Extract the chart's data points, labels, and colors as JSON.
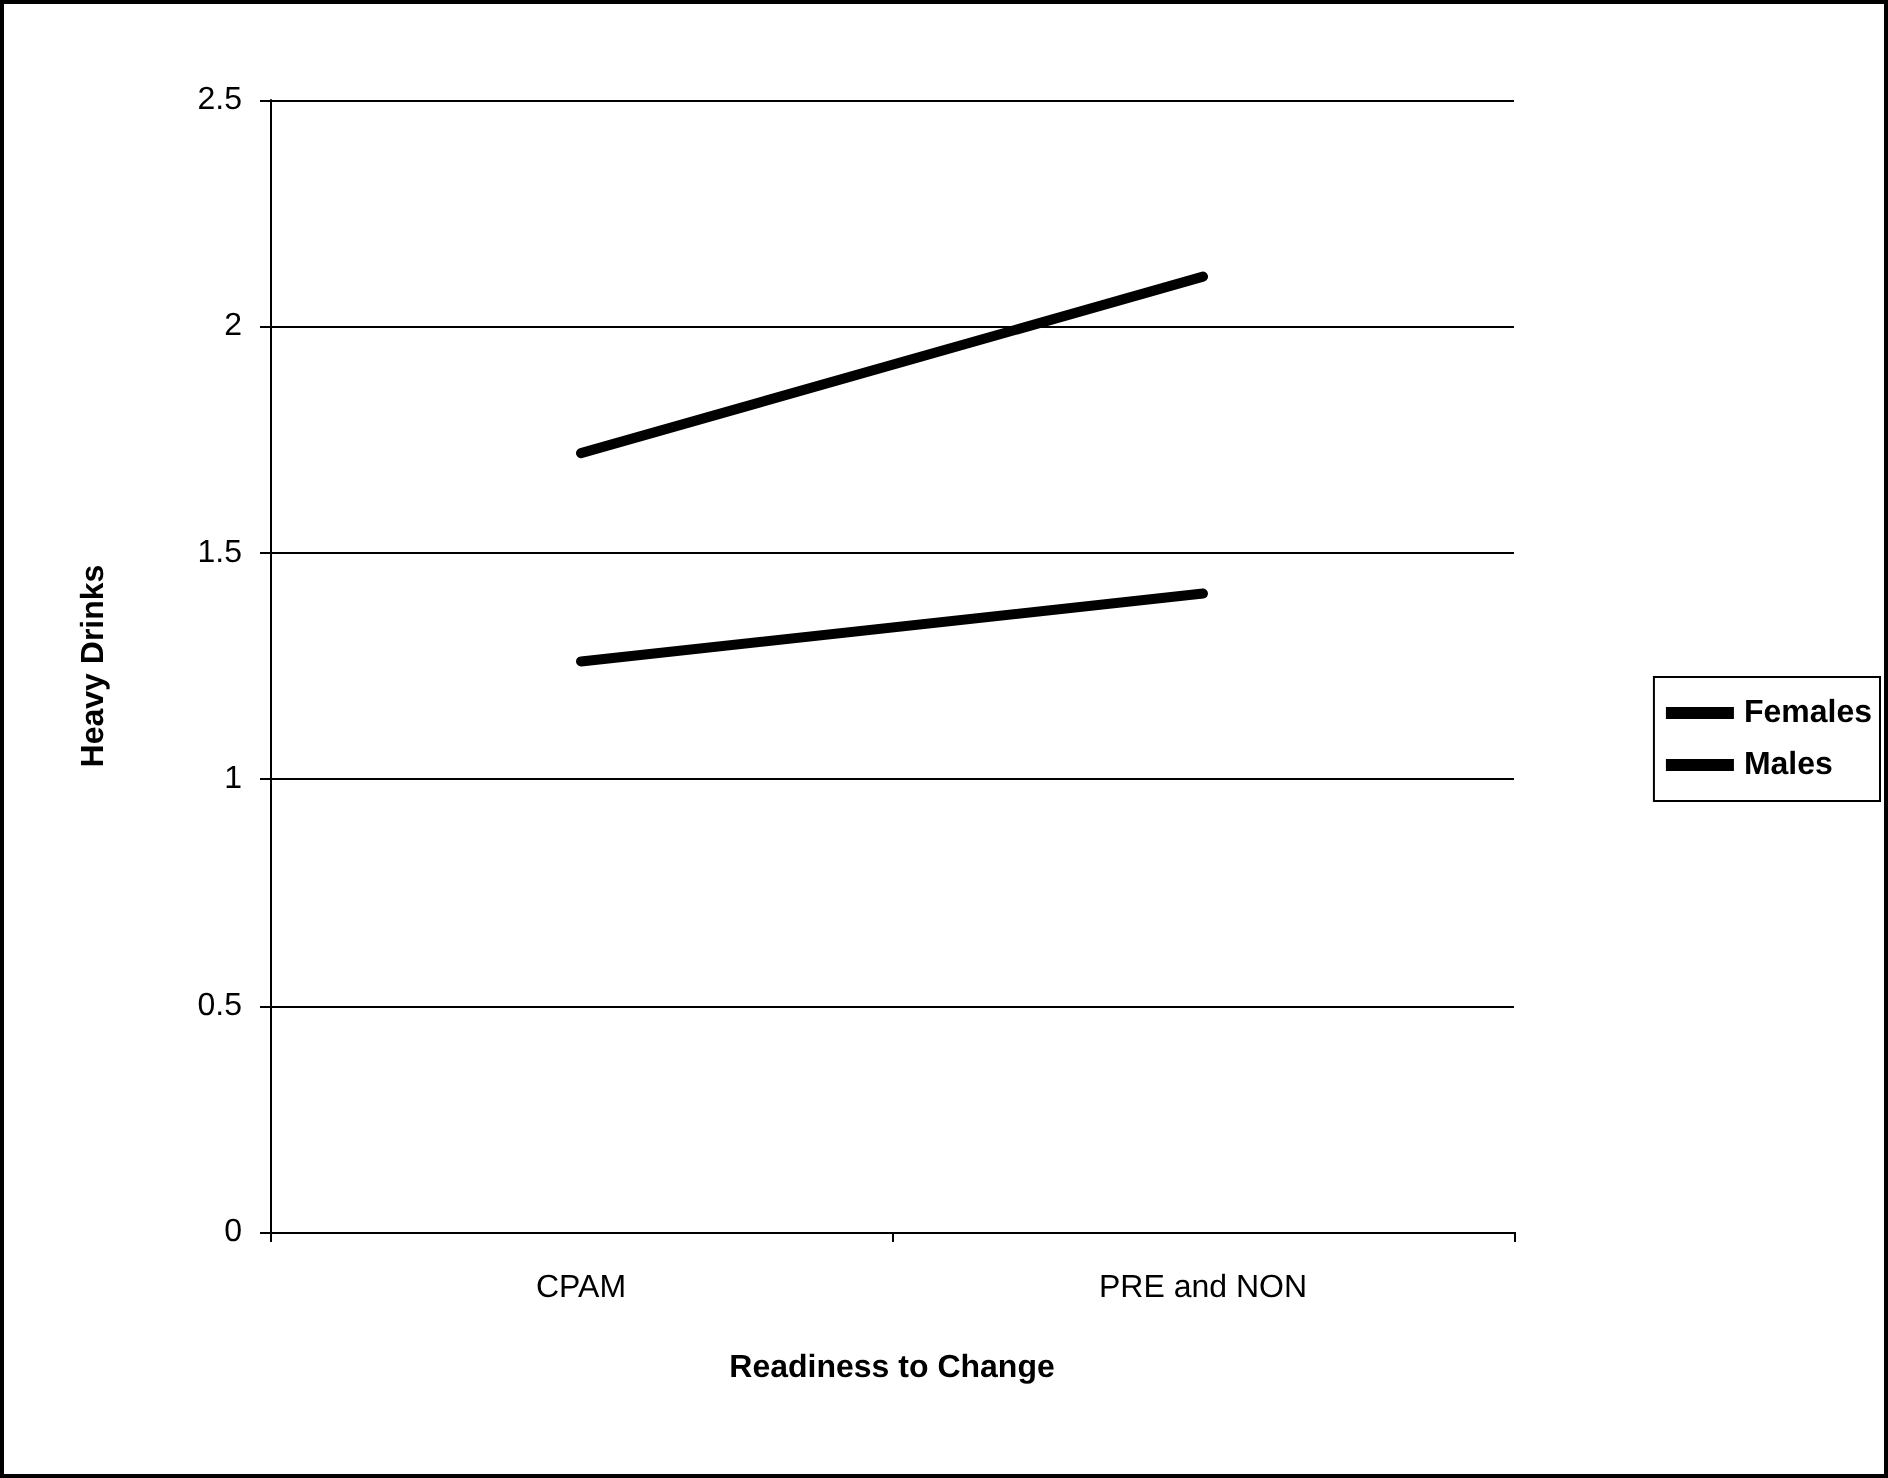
{
  "chart_data": {
    "type": "line",
    "xlabel": "Readiness to Change",
    "ylabel": "Heavy Drinks",
    "categories": [
      "CPAM",
      "PRE and NON"
    ],
    "series": [
      {
        "name": "Females",
        "color": "#000000",
        "values": [
          1.26,
          1.41
        ]
      },
      {
        "name": "Males",
        "color": "#000000",
        "values": [
          1.72,
          2.11
        ]
      }
    ],
    "ylim": [
      0,
      2.5
    ],
    "yticks": [
      0,
      0.5,
      1,
      1.5,
      2,
      2.5
    ],
    "grid": "y",
    "legend": "right",
    "marker": "none",
    "line_style": "solid"
  }
}
